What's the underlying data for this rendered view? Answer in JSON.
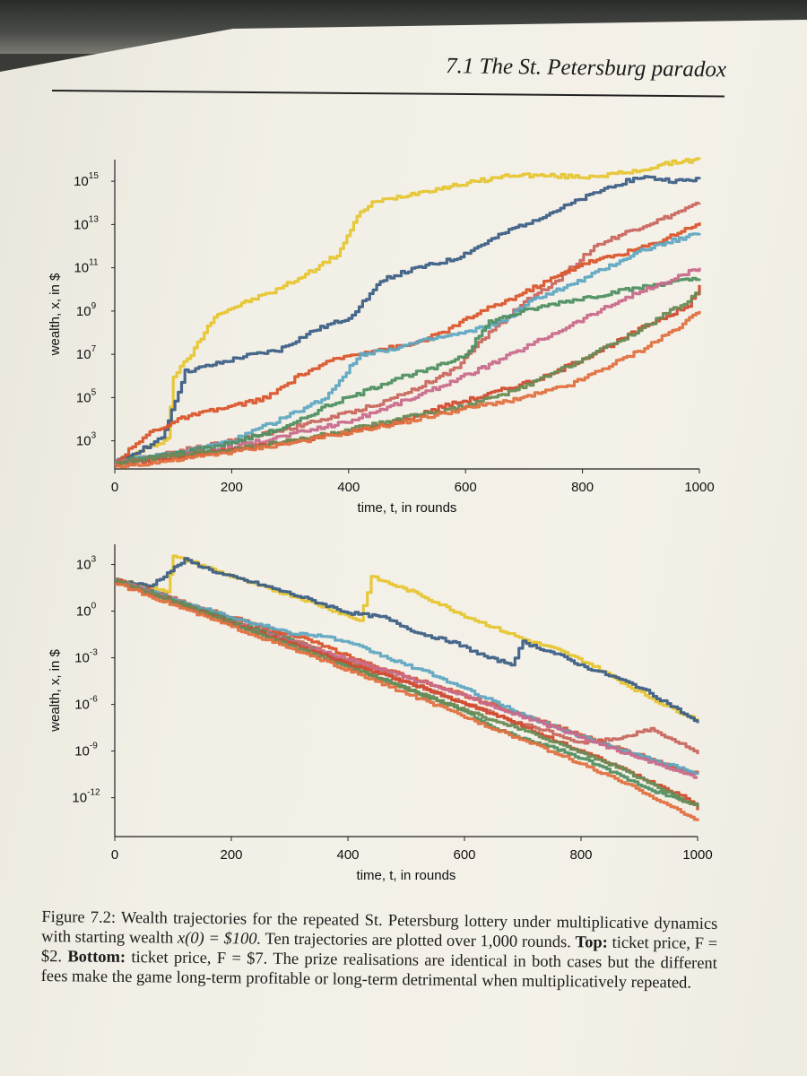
{
  "running_head": "7.1  The St. Petersburg paradox",
  "caption": {
    "label": "Figure 7.2:",
    "text1": "Wealth trajectories for the repeated St. Petersburg lottery under multiplicative dynamics with starting wealth",
    "formula": "x(0) = $100.",
    "text2": "Ten trajectories are plotted over 1,000 rounds.",
    "top_label": "Top:",
    "top_text": "ticket price, F = $2.",
    "bottom_label": "Bottom:",
    "bottom_text": "ticket price, F = $7.",
    "text3": "The prize realisations are identical in both cases but the different fees make the game long-term profitable or long-term detrimental when multiplicatively repeated."
  },
  "colors": [
    "#e6c531",
    "#3d5f86",
    "#c8675f",
    "#d9552c",
    "#5fa7c2",
    "#4f8f62",
    "#c96a8c",
    "#d24a2e",
    "#6a8a55",
    "#e07040"
  ],
  "chart_data": [
    {
      "type": "line",
      "title": "",
      "xlabel": "time, t, in rounds",
      "ylabel": "wealth, x, in $",
      "xlim": [
        0,
        1000
      ],
      "ylim_log10": [
        1.7,
        16
      ],
      "xticks": [
        0,
        200,
        400,
        600,
        800,
        1000
      ],
      "yticks": [
        {
          "base": "10",
          "exp": "3",
          "value": 3
        },
        {
          "base": "10",
          "exp": "5",
          "value": 5
        },
        {
          "base": "10",
          "exp": "7",
          "value": 7
        },
        {
          "base": "10",
          "exp": "9",
          "value": 9
        },
        {
          "base": "10",
          "exp": "11",
          "value": 11
        },
        {
          "base": "10",
          "exp": "13",
          "value": 13
        },
        {
          "base": "10",
          "exp": "15",
          "value": 15
        }
      ],
      "series": [
        {
          "name": "yellow",
          "x": [
            0,
            50,
            90,
            100,
            130,
            170,
            240,
            270,
            320,
            380,
            420,
            440,
            520,
            680,
            800,
            880,
            960,
            1000
          ],
          "log10": [
            2,
            2.6,
            3.1,
            6,
            7,
            8.8,
            9.6,
            9.9,
            10.6,
            11.6,
            13.6,
            14.0,
            14.5,
            15.3,
            15.2,
            15.4,
            15.9,
            16.0
          ]
        },
        {
          "name": "navy",
          "x": [
            0,
            80,
            120,
            180,
            220,
            280,
            340,
            400,
            460,
            520,
            580,
            680,
            750,
            800,
            850,
            900,
            960,
            1000
          ],
          "log10": [
            2,
            3.1,
            6.2,
            6.6,
            6.9,
            7.2,
            8.1,
            8.7,
            10.5,
            11.0,
            11.4,
            12.8,
            13.6,
            14.2,
            14.8,
            15.2,
            15.0,
            15.1
          ]
        },
        {
          "name": "rose",
          "x": [
            0,
            100,
            200,
            300,
            400,
            460,
            520,
            580,
            640,
            700,
            760,
            820,
            880,
            940,
            1000
          ],
          "log10": [
            2,
            2.5,
            3.0,
            3.6,
            4.3,
            4.8,
            5.5,
            6.3,
            8.0,
            9.4,
            10.5,
            12.0,
            12.7,
            13.3,
            14.0
          ]
        },
        {
          "name": "orange",
          "x": [
            0,
            60,
            120,
            200,
            260,
            320,
            380,
            440,
            500,
            560,
            620,
            680,
            740,
            800,
            860,
            920,
            1000
          ],
          "log10": [
            2,
            3.4,
            4.1,
            4.6,
            5.0,
            6.1,
            6.8,
            7.2,
            7.4,
            8.0,
            8.9,
            9.6,
            10.4,
            11.2,
            11.6,
            12.1,
            13.1
          ]
        },
        {
          "name": "lightblue",
          "x": [
            0,
            100,
            200,
            300,
            360,
            420,
            480,
            540,
            600,
            660,
            720,
            780,
            840,
            900,
            960,
            1000
          ],
          "log10": [
            2,
            2.4,
            3.0,
            4.2,
            5.0,
            7.0,
            7.3,
            7.7,
            8.0,
            8.5,
            9.6,
            10.2,
            11.0,
            11.8,
            12.3,
            12.6
          ]
        },
        {
          "name": "green",
          "x": [
            0,
            100,
            200,
            300,
            360,
            420,
            480,
            540,
            600,
            640,
            700,
            760,
            820,
            880,
            940,
            1000
          ],
          "log10": [
            2,
            2.4,
            2.9,
            3.7,
            4.6,
            5.2,
            5.9,
            6.3,
            7.0,
            8.5,
            9.0,
            9.4,
            9.7,
            10.0,
            10.3,
            10.5
          ]
        },
        {
          "name": "pink",
          "x": [
            0,
            100,
            200,
            300,
            400,
            460,
            520,
            580,
            640,
            700,
            760,
            820,
            880,
            940,
            1000
          ],
          "log10": [
            2,
            2.3,
            2.7,
            3.3,
            3.9,
            4.5,
            5.1,
            5.8,
            6.5,
            7.3,
            8.1,
            8.9,
            9.7,
            10.3,
            11.0
          ]
        },
        {
          "name": "red",
          "x": [
            0,
            100,
            200,
            300,
            400,
            500,
            560,
            620,
            680,
            740,
            800,
            860,
            920,
            980,
            1000
          ],
          "log10": [
            1.9,
            2.2,
            2.6,
            3.0,
            3.4,
            4.0,
            4.6,
            5.0,
            5.5,
            6.0,
            6.8,
            7.6,
            8.5,
            9.2,
            10.2
          ]
        },
        {
          "name": "darkgreen",
          "x": [
            0,
            100,
            200,
            300,
            400,
            500,
            600,
            680,
            740,
            800,
            860,
            920,
            980,
            1000
          ],
          "log10": [
            2,
            2.3,
            2.6,
            3.0,
            3.5,
            4.1,
            4.6,
            5.3,
            6.0,
            6.8,
            7.6,
            8.5,
            9.5,
            9.9
          ]
        },
        {
          "name": "red2",
          "x": [
            0,
            100,
            200,
            300,
            400,
            500,
            600,
            700,
            780,
            840,
            900,
            960,
            1000
          ],
          "log10": [
            1.8,
            2.1,
            2.5,
            2.9,
            3.4,
            3.9,
            4.5,
            5.0,
            5.6,
            6.4,
            7.2,
            8.2,
            9.0
          ]
        }
      ]
    },
    {
      "type": "line",
      "title": "",
      "xlabel": "time, t, in rounds",
      "ylabel": "wealth, x, in $",
      "xlim": [
        0,
        1000
      ],
      "ylim_log10": [
        -14.5,
        4.3
      ],
      "xticks": [
        0,
        200,
        400,
        600,
        800,
        1000
      ],
      "yticks": [
        {
          "base": "10",
          "exp": "3",
          "value": 3
        },
        {
          "base": "10",
          "exp": "0",
          "value": 0
        },
        {
          "base": "10",
          "exp": "-3",
          "value": -3
        },
        {
          "base": "10",
          "exp": "-6",
          "value": -6
        },
        {
          "base": "10",
          "exp": "-9",
          "value": -9
        },
        {
          "base": "10",
          "exp": "-12",
          "value": -12
        }
      ],
      "series": [
        {
          "name": "yellow",
          "x": [
            0,
            90,
            100,
            130,
            180,
            240,
            320,
            420,
            440,
            520,
            600,
            680,
            700,
            760,
            820,
            880,
            940,
            1000
          ],
          "log10": [
            2,
            1.3,
            3.5,
            3.2,
            2.5,
            1.7,
            0.8,
            -0.6,
            2.2,
            1.1,
            -0.3,
            -1.5,
            -1.8,
            -2.5,
            -3.5,
            -4.8,
            -6.0,
            -7.0
          ]
        },
        {
          "name": "navy",
          "x": [
            0,
            60,
            120,
            180,
            240,
            320,
            400,
            460,
            520,
            580,
            640,
            680,
            700,
            760,
            800,
            860,
            900,
            960,
            1000
          ],
          "log10": [
            2,
            1.6,
            3.3,
            2.4,
            1.8,
            0.9,
            -0.1,
            -0.4,
            -1.4,
            -2.0,
            -3.0,
            -3.4,
            -2.0,
            -2.8,
            -3.5,
            -4.3,
            -4.9,
            -6.2,
            -7.2
          ]
        },
        {
          "name": "rose",
          "x": [
            0,
            100,
            200,
            300,
            400,
            500,
            560,
            620,
            680,
            740,
            800,
            860,
            920,
            980,
            1000
          ],
          "log10": [
            2,
            0.8,
            -0.6,
            -1.8,
            -3.2,
            -4.5,
            -5.4,
            -6.2,
            -7.1,
            -7.7,
            -8.5,
            -8.2,
            -7.6,
            -8.7,
            -9.2
          ]
        },
        {
          "name": "orange",
          "x": [
            0,
            60,
            120,
            200,
            260,
            320,
            380,
            440,
            500,
            560,
            620,
            680,
            740,
            800,
            860,
            920,
            1000
          ],
          "log10": [
            2,
            1.3,
            0.5,
            -0.4,
            -1.1,
            -1.7,
            -2.6,
            -3.5,
            -4.2,
            -4.9,
            -5.7,
            -6.5,
            -7.2,
            -8.0,
            -8.8,
            -9.5,
            -10.5
          ]
        },
        {
          "name": "lightblue",
          "x": [
            0,
            100,
            200,
            300,
            360,
            420,
            480,
            540,
            600,
            660,
            720,
            780,
            840,
            900,
            960,
            1000
          ],
          "log10": [
            2,
            0.8,
            -0.4,
            -1.4,
            -1.6,
            -2.3,
            -3.2,
            -4.0,
            -5.0,
            -6.0,
            -7.0,
            -7.8,
            -8.6,
            -9.3,
            -10.0,
            -10.5
          ]
        },
        {
          "name": "green",
          "x": [
            0,
            100,
            200,
            300,
            360,
            420,
            480,
            540,
            600,
            640,
            700,
            760,
            820,
            880,
            940,
            1000
          ],
          "log10": [
            2,
            0.7,
            -0.7,
            -1.9,
            -2.8,
            -3.8,
            -4.7,
            -5.6,
            -6.4,
            -7.4,
            -8.2,
            -8.9,
            -9.8,
            -10.8,
            -11.8,
            -12.4
          ]
        },
        {
          "name": "pink",
          "x": [
            0,
            100,
            200,
            300,
            400,
            460,
            520,
            580,
            640,
            700,
            760,
            820,
            880,
            940,
            1000
          ],
          "log10": [
            2,
            0.6,
            -0.8,
            -2.0,
            -3.1,
            -3.8,
            -4.5,
            -5.2,
            -6.0,
            -6.8,
            -7.6,
            -8.4,
            -9.2,
            -10.0,
            -10.7
          ]
        },
        {
          "name": "red",
          "x": [
            0,
            100,
            200,
            300,
            400,
            500,
            560,
            620,
            680,
            740,
            800,
            860,
            920,
            980,
            1000
          ],
          "log10": [
            1.9,
            0.6,
            -0.8,
            -2.1,
            -3.4,
            -4.6,
            -5.4,
            -6.2,
            -7.1,
            -8.1,
            -9.0,
            -10.0,
            -11.0,
            -12.0,
            -12.8
          ]
        },
        {
          "name": "darkgreen",
          "x": [
            0,
            100,
            200,
            300,
            400,
            500,
            600,
            680,
            740,
            800,
            860,
            920,
            980,
            1000
          ],
          "log10": [
            2,
            0.6,
            -0.8,
            -2.2,
            -3.6,
            -5.0,
            -6.4,
            -7.4,
            -8.2,
            -9.1,
            -10.0,
            -11.1,
            -12.3,
            -12.6
          ]
        },
        {
          "name": "red2",
          "x": [
            0,
            100,
            200,
            300,
            400,
            500,
            600,
            700,
            780,
            840,
            900,
            960,
            1000
          ],
          "log10": [
            1.8,
            0.4,
            -1.0,
            -2.4,
            -3.8,
            -5.3,
            -6.8,
            -8.3,
            -9.5,
            -10.5,
            -11.5,
            -12.7,
            -13.5
          ]
        }
      ]
    }
  ]
}
